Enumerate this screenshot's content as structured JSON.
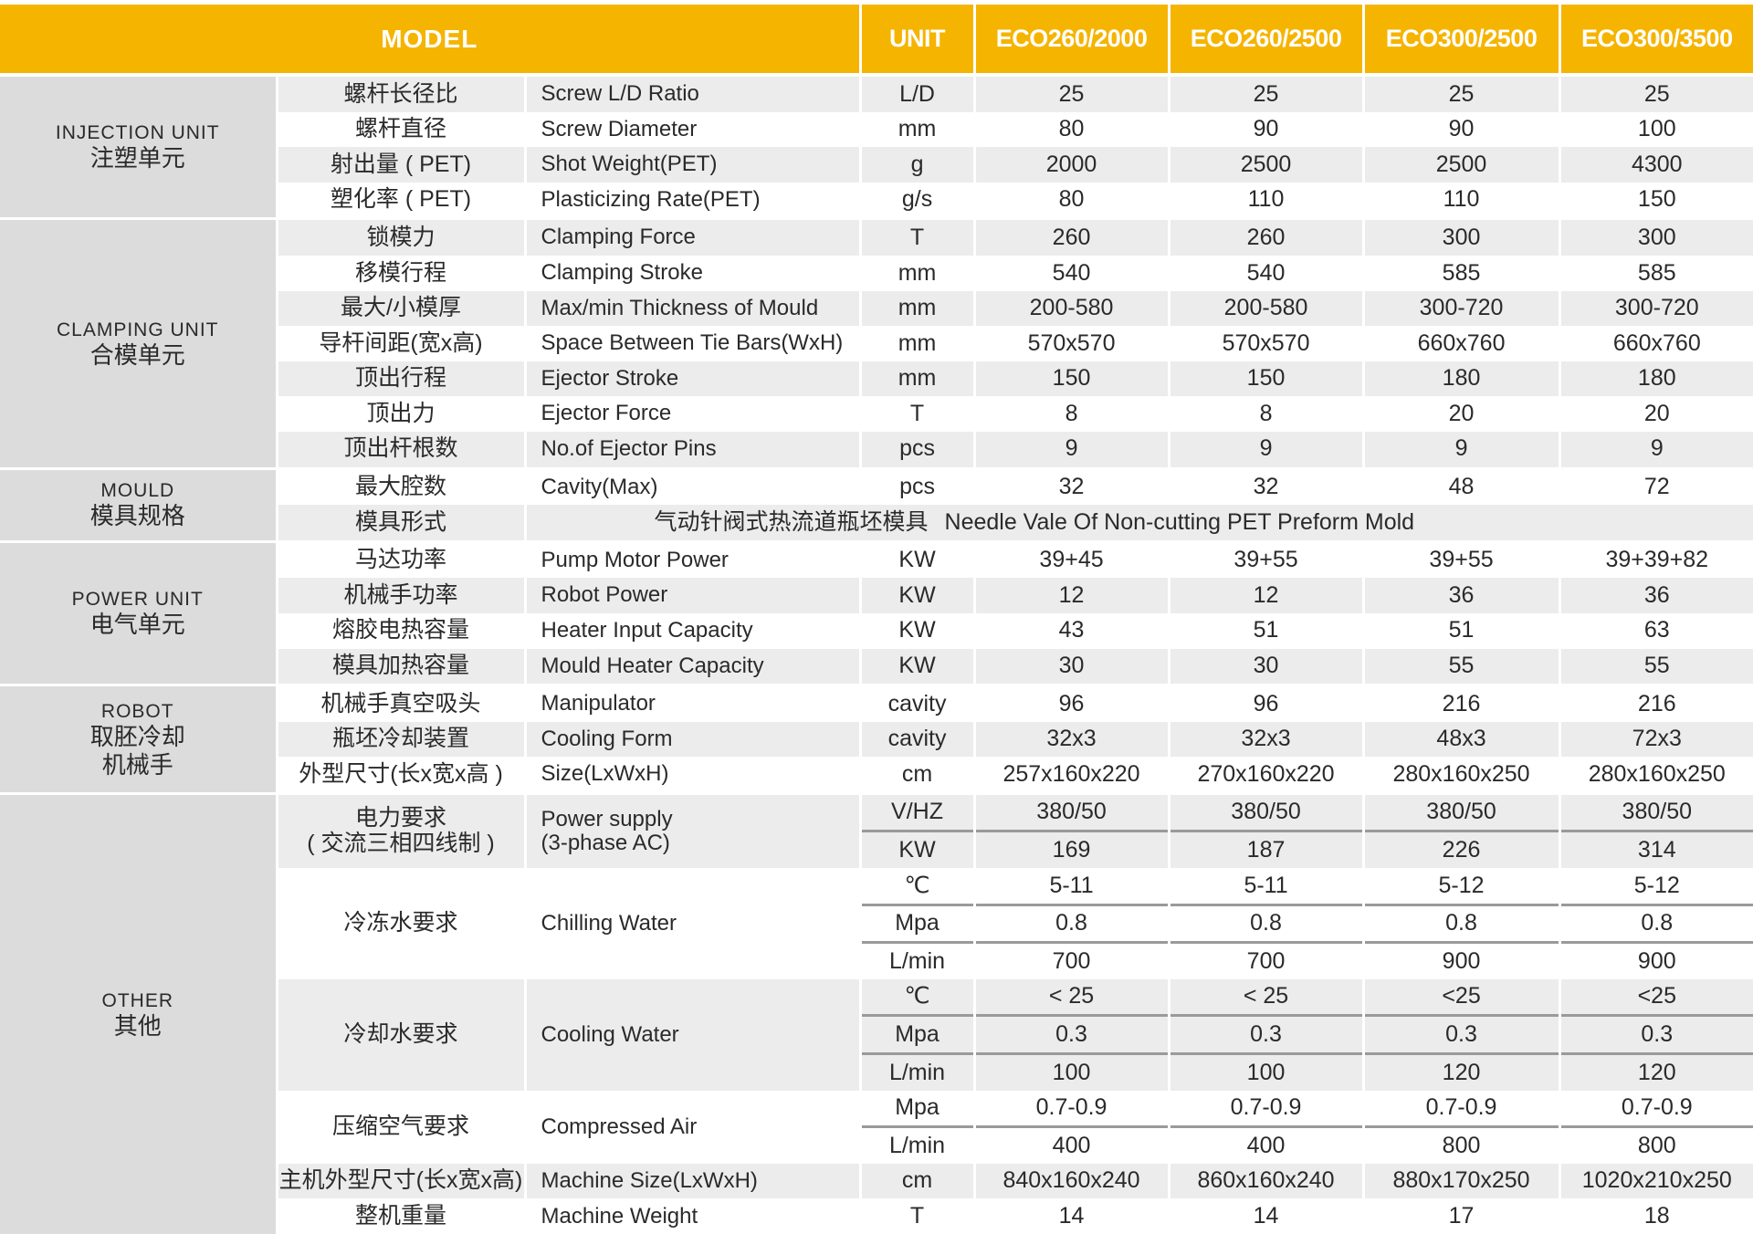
{
  "colors": {
    "header_bg": "#f5b400",
    "header_text": "#ffffff",
    "row_grey": "#ececec",
    "group_bg": "#dcdcdc",
    "sub_divider": "#9a9a9a"
  },
  "header": {
    "model": "MODEL",
    "unit": "UNIT",
    "models": [
      "ECO260/2000",
      "ECO260/2500",
      "ECO300/2500",
      "ECO300/3500"
    ]
  },
  "groups": [
    {
      "en": "INJECTION UNIT",
      "cn": [
        "注塑单元"
      ],
      "items": [
        {
          "cn": [
            "螺杆长径比"
          ],
          "en": [
            "Screw L/D Ratio"
          ],
          "rows": [
            {
              "unit": "L/D",
              "values": [
                "25",
                "25",
                "25",
                "25"
              ]
            }
          ]
        },
        {
          "cn": [
            "螺杆直径"
          ],
          "en": [
            "Screw Diameter"
          ],
          "rows": [
            {
              "unit": "mm",
              "values": [
                "80",
                "90",
                "90",
                "100"
              ]
            }
          ]
        },
        {
          "cn": [
            "射出量 ( PET)"
          ],
          "en": [
            "Shot  Weight(PET)"
          ],
          "rows": [
            {
              "unit": "g",
              "values": [
                "2000",
                "2500",
                "2500",
                "4300"
              ]
            }
          ]
        },
        {
          "cn": [
            "塑化率 ( PET)"
          ],
          "en": [
            "Plasticizing Rate(PET)"
          ],
          "rows": [
            {
              "unit": "g/s",
              "values": [
                "80",
                "110",
                "110",
                "150"
              ]
            }
          ]
        }
      ]
    },
    {
      "en": "CLAMPING UNIT",
      "cn": [
        "合模单元"
      ],
      "items": [
        {
          "cn": [
            "锁模力"
          ],
          "en": [
            "Clamping Force"
          ],
          "rows": [
            {
              "unit": "T",
              "values": [
                "260",
                "260",
                "300",
                "300"
              ]
            }
          ]
        },
        {
          "cn": [
            "移模行程"
          ],
          "en": [
            "Clamping Stroke"
          ],
          "rows": [
            {
              "unit": "mm",
              "values": [
                "540",
                "540",
                "585",
                "585"
              ]
            }
          ]
        },
        {
          "cn": [
            "最大/小模厚"
          ],
          "en": [
            "Max/min Thickness of Mould"
          ],
          "rows": [
            {
              "unit": "mm",
              "values": [
                "200-580",
                "200-580",
                "300-720",
                "300-720"
              ]
            }
          ]
        },
        {
          "cn": [
            "导杆间距(宽x高)"
          ],
          "en": [
            "Space Between Tie Bars(WxH)"
          ],
          "rows": [
            {
              "unit": "mm",
              "values": [
                "570x570",
                "570x570",
                "660x760",
                "660x760"
              ]
            }
          ]
        },
        {
          "cn": [
            "顶出行程"
          ],
          "en": [
            "Ejector Stroke"
          ],
          "rows": [
            {
              "unit": "mm",
              "values": [
                "150",
                "150",
                "180",
                "180"
              ]
            }
          ]
        },
        {
          "cn": [
            "顶出力"
          ],
          "en": [
            "Ejector Force"
          ],
          "rows": [
            {
              "unit": "T",
              "values": [
                "8",
                "8",
                "20",
                "20"
              ]
            }
          ]
        },
        {
          "cn": [
            "顶出杆根数"
          ],
          "en": [
            "No.of Ejector Pins"
          ],
          "rows": [
            {
              "unit": "pcs",
              "values": [
                "9",
                "9",
                "9",
                "9"
              ]
            }
          ]
        }
      ]
    },
    {
      "en": "MOULD",
      "cn": [
        "模具规格"
      ],
      "items": [
        {
          "cn": [
            "最大腔数"
          ],
          "en": [
            "Cavity(Max)"
          ],
          "rows": [
            {
              "unit": "pcs",
              "values": [
                "32",
                "32",
                "48",
                "72"
              ]
            }
          ]
        },
        {
          "cn": [
            "模具形式"
          ],
          "merged": {
            "cn": "气动针阀式热流道瓶坯模具",
            "en": "Needle Vale Of Non-cutting PET Preform Mold"
          }
        }
      ]
    },
    {
      "en": "POWER UNIT",
      "cn": [
        "电气单元"
      ],
      "items": [
        {
          "cn": [
            "马达功率"
          ],
          "en": [
            "Pump Motor Power"
          ],
          "rows": [
            {
              "unit": "KW",
              "values": [
                "39+45",
                "39+55",
                "39+55",
                "39+39+82"
              ]
            }
          ]
        },
        {
          "cn": [
            "机械手功率"
          ],
          "en": [
            "Robot Power"
          ],
          "rows": [
            {
              "unit": "KW",
              "values": [
                "12",
                "12",
                "36",
                "36"
              ]
            }
          ]
        },
        {
          "cn": [
            "熔胶电热容量"
          ],
          "en": [
            "Heater Input Capacity"
          ],
          "rows": [
            {
              "unit": "KW",
              "values": [
                "43",
                "51",
                "51",
                "63"
              ]
            }
          ]
        },
        {
          "cn": [
            "模具加热容量"
          ],
          "en": [
            "Mould Heater Capacity"
          ],
          "rows": [
            {
              "unit": "KW",
              "values": [
                "30",
                "30",
                "55",
                "55"
              ]
            }
          ]
        }
      ]
    },
    {
      "en": "ROBOT",
      "cn": [
        "取胚冷却",
        "机械手"
      ],
      "items": [
        {
          "cn": [
            "机械手真空吸头"
          ],
          "en": [
            "Manipulator"
          ],
          "rows": [
            {
              "unit": "cavity",
              "values": [
                "96",
                "96",
                "216",
                "216"
              ]
            }
          ]
        },
        {
          "cn": [
            "瓶坯冷却装置"
          ],
          "en": [
            "Cooling Form"
          ],
          "rows": [
            {
              "unit": "cavity",
              "values": [
                "32x3",
                "32x3",
                "48x3",
                "72x3"
              ]
            }
          ]
        },
        {
          "cn": [
            "外型尺寸(长x宽x高 )"
          ],
          "en": [
            "Size(LxWxH)"
          ],
          "rows": [
            {
              "unit": "cm",
              "values": [
                "257x160x220",
                "270x160x220",
                "280x160x250",
                "280x160x250"
              ]
            }
          ]
        }
      ]
    },
    {
      "en": "OTHER",
      "cn": [
        "其他"
      ],
      "items": [
        {
          "cn": [
            "电力要求",
            "( 交流三相四线制 )"
          ],
          "en": [
            "Power supply",
            "(3-phase AC)"
          ],
          "rows": [
            {
              "unit": "V/HZ",
              "values": [
                "380/50",
                "380/50",
                "380/50",
                "380/50"
              ]
            },
            {
              "unit": "KW",
              "values": [
                "169",
                "187",
                "226",
                "314"
              ]
            }
          ]
        },
        {
          "cn": [
            "冷冻水要求"
          ],
          "en": [
            "Chilling Water"
          ],
          "rows": [
            {
              "unit": "℃",
              "values": [
                "5-11",
                "5-11",
                "5-12",
                "5-12"
              ]
            },
            {
              "unit": "Mpa",
              "values": [
                "0.8",
                "0.8",
                "0.8",
                "0.8"
              ]
            },
            {
              "unit": "L/min",
              "values": [
                "700",
                "700",
                "900",
                "900"
              ]
            }
          ]
        },
        {
          "cn": [
            "冷却水要求"
          ],
          "en": [
            "Cooling Water"
          ],
          "rows": [
            {
              "unit": "℃",
              "values": [
                "< 25",
                "< 25",
                "<25",
                "<25"
              ]
            },
            {
              "unit": "Mpa",
              "values": [
                "0.3",
                "0.3",
                "0.3",
                "0.3"
              ]
            },
            {
              "unit": "L/min",
              "values": [
                "100",
                "100",
                "120",
                "120"
              ]
            }
          ]
        },
        {
          "cn": [
            "压缩空气要求"
          ],
          "en": [
            "Compressed Air"
          ],
          "rows": [
            {
              "unit": "Mpa",
              "values": [
                "0.7-0.9",
                "0.7-0.9",
                "0.7-0.9",
                "0.7-0.9"
              ]
            },
            {
              "unit": "L/min",
              "values": [
                "400",
                "400",
                "800",
                "800"
              ]
            }
          ]
        },
        {
          "cn": [
            "主机外型尺寸(长x宽x高)"
          ],
          "en": [
            "Machine Size(LxWxH)"
          ],
          "rows": [
            {
              "unit": "cm",
              "values": [
                "840x160x240",
                "860x160x240",
                "880x170x250",
                "1020x210x250"
              ]
            }
          ]
        },
        {
          "cn": [
            "整机重量"
          ],
          "en": [
            "Machine Weight"
          ],
          "rows": [
            {
              "unit": "T",
              "values": [
                "14",
                "14",
                "17",
                "18"
              ]
            }
          ]
        }
      ]
    }
  ]
}
